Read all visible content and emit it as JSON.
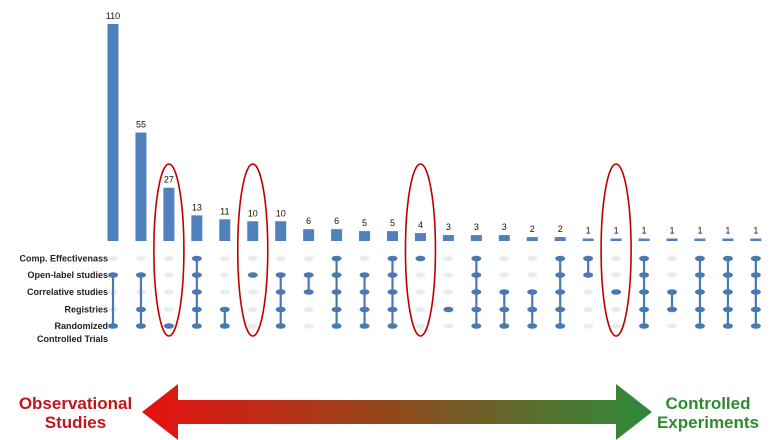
{
  "chart_data": {
    "type": "bar",
    "title": "",
    "xlabel": "",
    "ylabel": "",
    "ylim": [
      0,
      110
    ],
    "grid": false,
    "legend": "none",
    "set_labels": [
      "Comp. Effectivenass",
      "Open-label studies",
      "Correlative studies",
      "Registries",
      "Randomized Controlled Trials"
    ],
    "values": [
      110,
      55,
      27,
      13,
      11,
      10,
      10,
      6,
      6,
      5,
      5,
      4,
      3,
      3,
      3,
      2,
      2,
      1,
      1,
      1,
      1,
      1,
      1,
      1
    ],
    "value_labels": [
      "110",
      "55",
      "27",
      "13",
      "11",
      "10",
      "10",
      "6",
      "6",
      "5",
      "5",
      "4",
      "3",
      "3",
      "3",
      "2",
      "2",
      "1",
      "1",
      "1",
      "1",
      "1",
      "1",
      "1"
    ],
    "memberships": [
      [
        1,
        4
      ],
      [
        1,
        3,
        4
      ],
      [
        4
      ],
      [
        0,
        1,
        2,
        3,
        4
      ],
      [
        3,
        4
      ],
      [
        1
      ],
      [
        1,
        2,
        3,
        4
      ],
      [
        1,
        2
      ],
      [
        0,
        1,
        2,
        3,
        4
      ],
      [
        1,
        2,
        3,
        4
      ],
      [
        0,
        1,
        2,
        3,
        4
      ],
      [
        0
      ],
      [
        3
      ],
      [
        0,
        1,
        2,
        3,
        4
      ],
      [
        2,
        3,
        4
      ],
      [
        2,
        3,
        4
      ],
      [
        0,
        1,
        2,
        3,
        4
      ],
      [
        0,
        1
      ],
      [
        2
      ],
      [
        0,
        1,
        2,
        3,
        4
      ],
      [
        2,
        3
      ],
      [
        0,
        1,
        2,
        3,
        4
      ],
      [
        0,
        1,
        2,
        3,
        4
      ],
      [
        0,
        1,
        2,
        3,
        4
      ]
    ],
    "highlighted_columns": [
      2,
      5,
      11,
      18
    ],
    "colors": {
      "bar": "#4f81bd",
      "dot_active": "#4a78b0",
      "dot_inactive": "#e9ecf1",
      "highlight": "#c00000"
    }
  },
  "spectrum": {
    "left_label": [
      "Observational",
      "Studies"
    ],
    "right_label": [
      "Controlled",
      "Experiments"
    ],
    "left_color": "#e81010",
    "right_color": "#2d8c3a"
  }
}
